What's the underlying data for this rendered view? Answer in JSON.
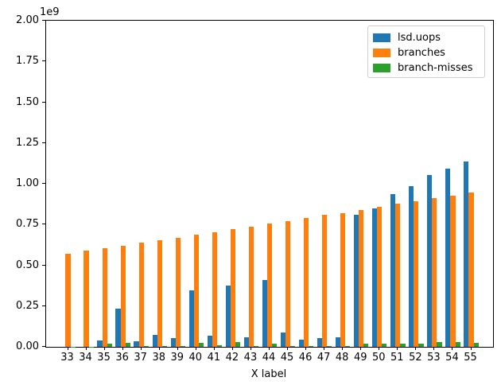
{
  "figure": {
    "offset_text": "1e9",
    "xlabel": "X label"
  },
  "chart_data": {
    "type": "bar",
    "title": "",
    "xlabel": "X label",
    "ylabel": "",
    "y_scale_offset_text": "1e9",
    "ylim": [
      0,
      2000000000
    ],
    "ytick_labels": [
      "0.00",
      "0.25",
      "0.50",
      "0.75",
      "1.00",
      "1.25",
      "1.50",
      "1.75",
      "2.00"
    ],
    "ytick_values": [
      0,
      250000000,
      500000000,
      750000000,
      1000000000,
      1250000000,
      1500000000,
      1750000000,
      2000000000
    ],
    "grid": false,
    "legend_position": "upper right",
    "axis_color": "#000000",
    "legend_border_color": "#cccccc",
    "categories": [
      "33",
      "34",
      "35",
      "36",
      "37",
      "38",
      "39",
      "40",
      "41",
      "42",
      "43",
      "44",
      "45",
      "46",
      "47",
      "48",
      "49",
      "50",
      "51",
      "52",
      "53",
      "54",
      "55"
    ],
    "series": [
      {
        "name": "lsd.uops",
        "color": "#1f77b4",
        "values": [
          0,
          0,
          40000000,
          234000000,
          36000000,
          71000000,
          53000000,
          346000000,
          70000000,
          377000000,
          59000000,
          410000000,
          88000000,
          44000000,
          52000000,
          60000000,
          812000000,
          851000000,
          936000000,
          985000000,
          1053000000,
          1094000000,
          1136000000
        ]
      },
      {
        "name": "branches",
        "color": "#ff7f0e",
        "values": [
          571000000,
          589000000,
          605000000,
          620000000,
          639000000,
          654000000,
          670000000,
          688000000,
          703000000,
          720000000,
          737000000,
          756000000,
          772000000,
          792000000,
          808000000,
          821000000,
          841000000,
          857000000,
          876000000,
          891000000,
          910000000,
          928000000,
          945000000
        ]
      },
      {
        "name": "branch-misses",
        "color": "#2ca02c",
        "values": [
          2000000,
          2000000,
          20000000,
          25000000,
          6000000,
          6000000,
          6000000,
          25000000,
          10000000,
          28000000,
          7000000,
          22000000,
          7000000,
          5000000,
          5000000,
          5000000,
          22000000,
          19000000,
          22000000,
          19000000,
          28000000,
          28000000,
          23000000
        ]
      }
    ]
  }
}
